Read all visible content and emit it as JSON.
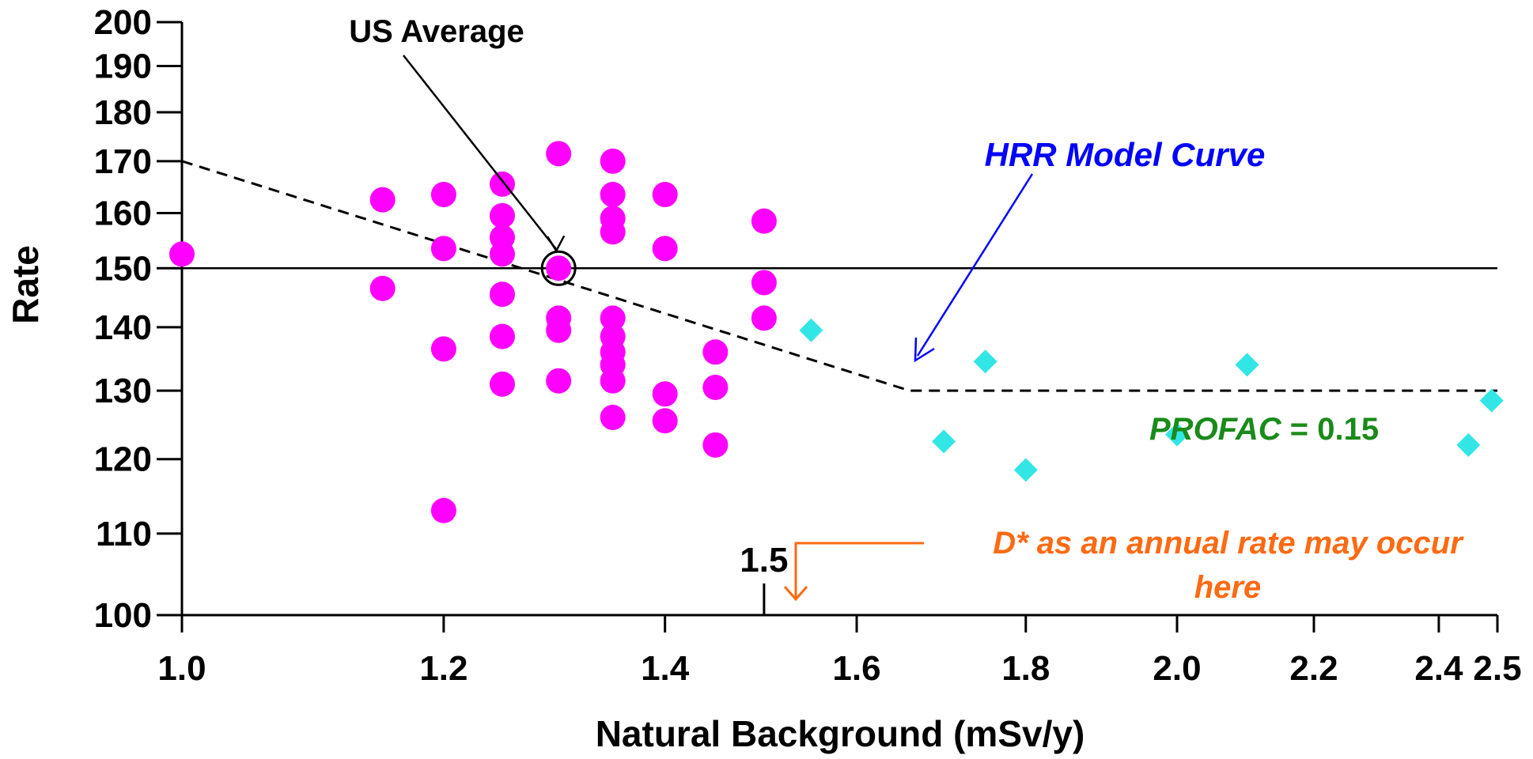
{
  "chart_data": {
    "type": "scatter",
    "title": "",
    "xlabel": "Natural Background (mSv/y)",
    "ylabel": "Rate",
    "xlim": [
      1.0,
      2.5
    ],
    "ylim": [
      100,
      200
    ],
    "x_scale": "log",
    "y_scale": "log",
    "x_ticks": [
      {
        "v": 1.0,
        "label": "1.0"
      },
      {
        "v": 1.2,
        "label": "1.2"
      },
      {
        "v": 1.4,
        "label": "1.4"
      },
      {
        "v": 1.6,
        "label": "1.6"
      },
      {
        "v": 1.8,
        "label": "1.8"
      },
      {
        "v": 2.0,
        "label": "2.0"
      },
      {
        "v": 2.2,
        "label": "2.2"
      },
      {
        "v": 2.4,
        "label": "2.4"
      },
      {
        "v": 2.5,
        "label": "2.5"
      }
    ],
    "x_minor_tick": {
      "v": 1.5,
      "label": "1.5"
    },
    "y_ticks": [
      {
        "v": 100,
        "label": "100"
      },
      {
        "v": 110,
        "label": "110"
      },
      {
        "v": 120,
        "label": "120"
      },
      {
        "v": 130,
        "label": "130"
      },
      {
        "v": 140,
        "label": "140"
      },
      {
        "v": 150,
        "label": "150"
      },
      {
        "v": 160,
        "label": "160"
      },
      {
        "v": 170,
        "label": "170"
      },
      {
        "v": 180,
        "label": "180"
      },
      {
        "v": 190,
        "label": "190"
      },
      {
        "v": 200,
        "label": "200"
      }
    ],
    "grid": false,
    "series": [
      {
        "marker": "circle",
        "color": "#ff00ff",
        "points": [
          [
            1.0,
            152.5
          ],
          [
            1.15,
            162.5
          ],
          [
            1.15,
            146.5
          ],
          [
            1.2,
            163.5
          ],
          [
            1.2,
            153.5
          ],
          [
            1.2,
            136.5
          ],
          [
            1.2,
            113
          ],
          [
            1.25,
            165.5
          ],
          [
            1.25,
            159.5
          ],
          [
            1.25,
            155.5
          ],
          [
            1.25,
            152.5
          ],
          [
            1.25,
            145.5
          ],
          [
            1.25,
            138.5
          ],
          [
            1.25,
            131
          ],
          [
            1.3,
            171.5
          ],
          [
            1.3,
            150
          ],
          [
            1.3,
            141.5
          ],
          [
            1.3,
            139.5
          ],
          [
            1.3,
            131.5
          ],
          [
            1.35,
            170
          ],
          [
            1.35,
            163.5
          ],
          [
            1.35,
            159
          ],
          [
            1.35,
            156.5
          ],
          [
            1.35,
            141.5
          ],
          [
            1.35,
            138.5
          ],
          [
            1.35,
            136
          ],
          [
            1.35,
            134
          ],
          [
            1.35,
            131.5
          ],
          [
            1.35,
            126
          ],
          [
            1.4,
            163.5
          ],
          [
            1.4,
            153.5
          ],
          [
            1.4,
            129.5
          ],
          [
            1.4,
            125.5
          ],
          [
            1.45,
            136
          ],
          [
            1.45,
            130.5
          ],
          [
            1.45,
            122
          ],
          [
            1.5,
            158.5
          ],
          [
            1.5,
            147.5
          ],
          [
            1.5,
            141.5
          ]
        ]
      },
      {
        "marker": "diamond",
        "color": "#33e6e6",
        "points": [
          [
            1.55,
            139.5
          ],
          [
            1.7,
            122.5
          ],
          [
            1.75,
            134.5
          ],
          [
            1.8,
            118.5
          ],
          [
            2.0,
            123.5
          ],
          [
            2.1,
            134
          ],
          [
            2.45,
            122
          ],
          [
            2.49,
            128.5
          ]
        ]
      }
    ],
    "reference_line": {
      "y": 150
    },
    "model_curve": {
      "points": [
        [
          1.0,
          170
        ],
        [
          1.66,
          130
        ],
        [
          2.5,
          130
        ]
      ],
      "style": "dashed"
    },
    "annotations": {
      "us_average": {
        "text": "US Average",
        "point": [
          1.3,
          150
        ]
      },
      "hrr_curve": {
        "text": "HRR Model Curve",
        "color": "#0000ff"
      },
      "profac": {
        "name": "PROFAC",
        "value": " = 0.15",
        "color": "#1a8a1a"
      },
      "d_star": {
        "line1": "D* as an annual rate may occur",
        "line2": "here",
        "color": "#ff6a13"
      }
    }
  }
}
